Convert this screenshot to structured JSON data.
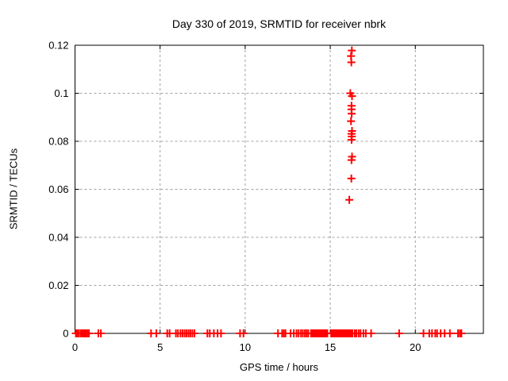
{
  "chart_data": {
    "type": "scatter",
    "title": "Day 330 of 2019, SRMTID for receiver nbrk",
    "xlabel": "GPS time / hours",
    "ylabel": "SRMTID / TECUs",
    "xlim": [
      0,
      24
    ],
    "ylim": [
      0,
      0.12
    ],
    "x_ticks": [
      0,
      5,
      10,
      15,
      20
    ],
    "x_tick_labels": [
      "0",
      "5",
      "10",
      "15",
      "20"
    ],
    "y_ticks": [
      0,
      0.02,
      0.04,
      0.06,
      0.08,
      0.1,
      0.12
    ],
    "y_tick_labels": [
      "0",
      "0.02",
      "0.04",
      "0.06",
      "0.08",
      "0.1",
      "0.12"
    ],
    "grid": true,
    "legend": "none",
    "marker": "plus",
    "marker_color": "#ff0000",
    "grid_color": "#a0a0a0",
    "axis_color": "#000000",
    "series": [
      {
        "name": "SRMTID",
        "points": [
          [
            16.27,
            0.1178
          ],
          [
            16.22,
            0.1155
          ],
          [
            16.24,
            0.1129
          ],
          [
            16.18,
            0.1
          ],
          [
            16.28,
            0.0988
          ],
          [
            16.25,
            0.0948
          ],
          [
            16.25,
            0.0933
          ],
          [
            16.26,
            0.0915
          ],
          [
            16.22,
            0.0884
          ],
          [
            16.28,
            0.0843
          ],
          [
            16.25,
            0.0831
          ],
          [
            16.27,
            0.082
          ],
          [
            16.25,
            0.0806
          ],
          [
            16.28,
            0.0736
          ],
          [
            16.25,
            0.0722
          ],
          [
            16.24,
            0.0645
          ],
          [
            16.12,
            0.0556
          ],
          [
            0.05,
            0
          ],
          [
            0.13,
            0
          ],
          [
            0.22,
            0
          ],
          [
            0.33,
            0
          ],
          [
            0.42,
            0
          ],
          [
            0.47,
            0
          ],
          [
            0.56,
            0
          ],
          [
            0.65,
            0
          ],
          [
            0.74,
            0
          ],
          [
            0.82,
            0
          ],
          [
            1.37,
            0
          ],
          [
            1.52,
            0
          ],
          [
            4.47,
            0
          ],
          [
            4.78,
            0
          ],
          [
            5.42,
            0
          ],
          [
            5.56,
            0
          ],
          [
            5.93,
            0
          ],
          [
            6.05,
            0
          ],
          [
            6.2,
            0
          ],
          [
            6.32,
            0
          ],
          [
            6.44,
            0
          ],
          [
            6.55,
            0
          ],
          [
            6.67,
            0
          ],
          [
            6.78,
            0
          ],
          [
            6.9,
            0
          ],
          [
            7.02,
            0
          ],
          [
            7.78,
            0
          ],
          [
            7.92,
            0
          ],
          [
            8.16,
            0
          ],
          [
            8.38,
            0
          ],
          [
            8.58,
            0
          ],
          [
            9.7,
            0
          ],
          [
            9.9,
            0
          ],
          [
            11.93,
            0
          ],
          [
            12.17,
            0
          ],
          [
            12.27,
            0
          ],
          [
            12.37,
            0
          ],
          [
            12.67,
            0
          ],
          [
            12.86,
            0
          ],
          [
            13.02,
            0
          ],
          [
            13.14,
            0
          ],
          [
            13.28,
            0
          ],
          [
            13.39,
            0
          ],
          [
            13.51,
            0
          ],
          [
            13.61,
            0
          ],
          [
            13.71,
            0
          ],
          [
            13.87,
            0
          ],
          [
            13.95,
            0
          ],
          [
            14.03,
            0
          ],
          [
            14.11,
            0
          ],
          [
            14.19,
            0
          ],
          [
            14.27,
            0
          ],
          [
            14.35,
            0
          ],
          [
            14.43,
            0
          ],
          [
            14.51,
            0
          ],
          [
            14.59,
            0
          ],
          [
            14.67,
            0
          ],
          [
            14.75,
            0
          ],
          [
            14.83,
            0
          ],
          [
            15.05,
            0
          ],
          [
            15.12,
            0
          ],
          [
            15.19,
            0
          ],
          [
            15.26,
            0
          ],
          [
            15.33,
            0
          ],
          [
            15.4,
            0
          ],
          [
            15.47,
            0
          ],
          [
            15.54,
            0
          ],
          [
            15.61,
            0
          ],
          [
            15.68,
            0
          ],
          [
            15.75,
            0
          ],
          [
            15.82,
            0
          ],
          [
            15.89,
            0
          ],
          [
            15.96,
            0
          ],
          [
            16.03,
            0
          ],
          [
            16.1,
            0
          ],
          [
            16.17,
            0
          ],
          [
            16.24,
            0
          ],
          [
            16.31,
            0
          ],
          [
            16.44,
            0
          ],
          [
            16.54,
            0
          ],
          [
            16.67,
            0
          ],
          [
            16.78,
            0
          ],
          [
            16.95,
            0
          ],
          [
            17.09,
            0
          ],
          [
            17.4,
            0
          ],
          [
            19.05,
            0
          ],
          [
            20.48,
            0
          ],
          [
            20.82,
            0
          ],
          [
            20.98,
            0
          ],
          [
            21.17,
            0
          ],
          [
            21.28,
            0
          ],
          [
            21.49,
            0
          ],
          [
            21.72,
            0
          ],
          [
            22.03,
            0
          ],
          [
            22.51,
            0
          ],
          [
            22.62,
            0
          ],
          [
            22.71,
            0
          ]
        ]
      }
    ]
  }
}
